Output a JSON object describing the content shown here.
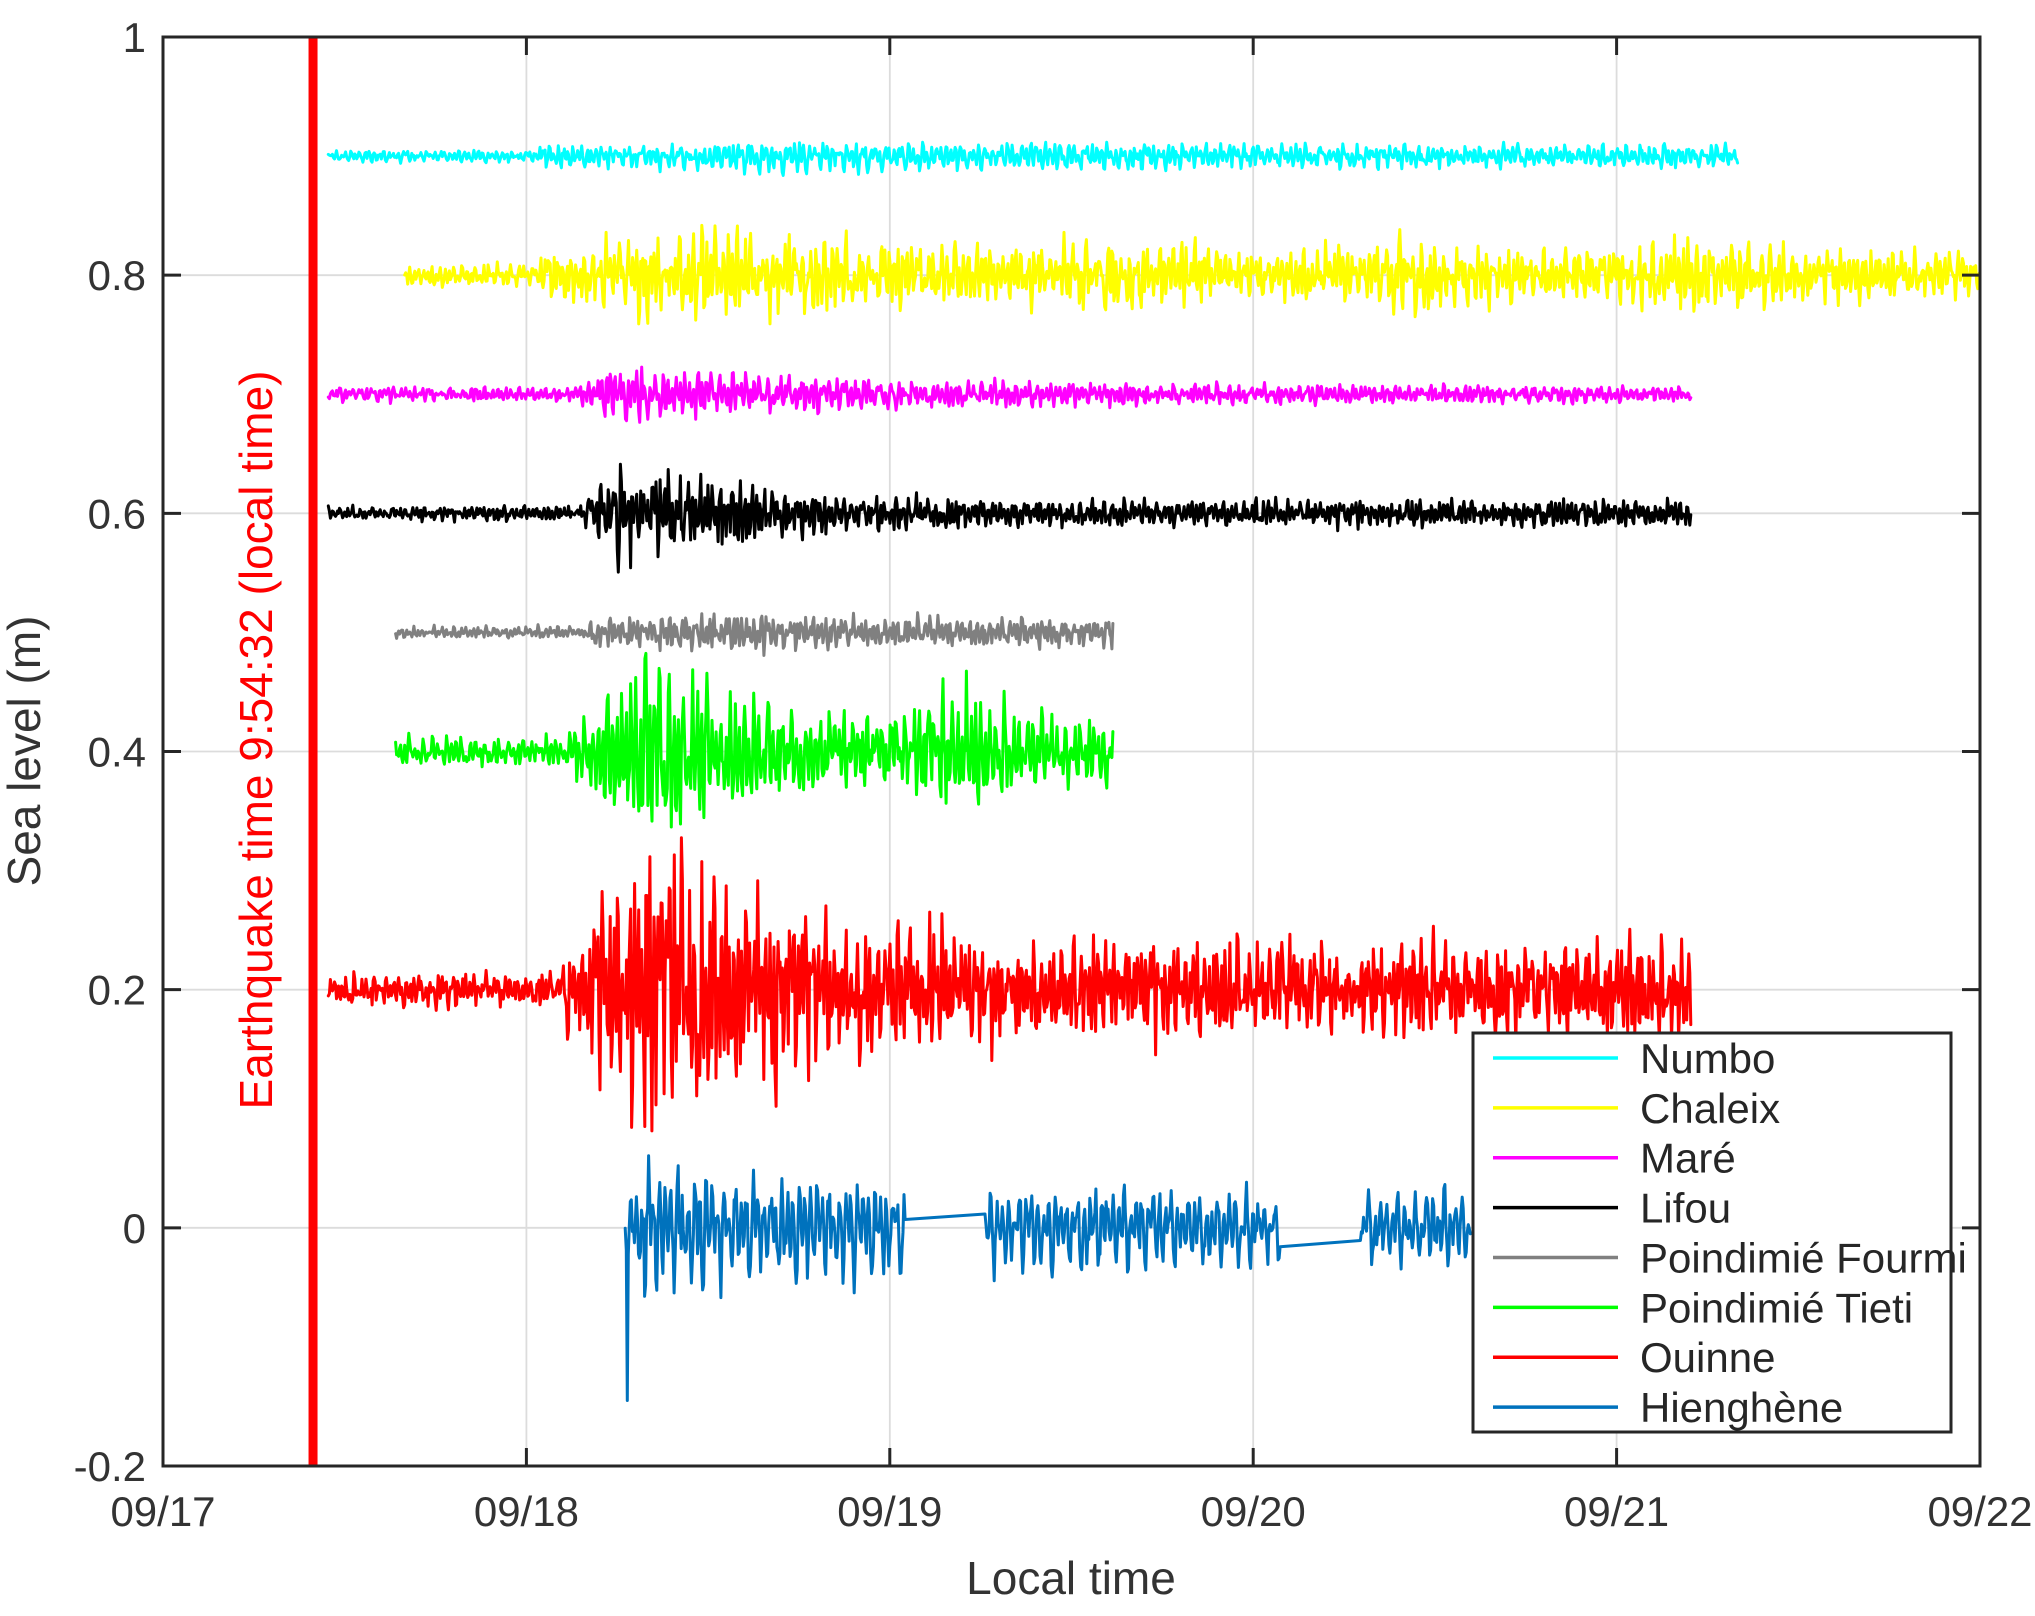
{
  "chart_data": {
    "type": "line",
    "title": "",
    "xlabel": "Local time",
    "ylabel": "Sea level (m)",
    "grid": true,
    "legend_position": "bottom-right",
    "xlim_days": [
      0,
      5
    ],
    "xtick_days": [
      0,
      1,
      2,
      3,
      4,
      5
    ],
    "xticklabels": [
      "09/17",
      "09/18",
      "09/19",
      "09/20",
      "09/21",
      "09/22"
    ],
    "ylim": [
      -0.2,
      1
    ],
    "yticks": [
      -0.2,
      0,
      0.2,
      0.4,
      0.6,
      0.8,
      1
    ],
    "ytick_labels": [
      "-0.2",
      "0",
      "0.2",
      "0.4",
      "0.6",
      "0.8",
      "1"
    ],
    "earthquake": {
      "label": "Earthquake time 9:54:32 (local time)",
      "time_days": 0.41287,
      "color": "#ff0000"
    },
    "series": [
      {
        "name": "Numbo",
        "color": "#00ffff",
        "offset_m": 0.9,
        "segments_days": [
          [
            0.455,
            4.335
          ]
        ],
        "quiet_amp_m": 0.005,
        "burst_start_day": 1.02,
        "rise_days": 0.5,
        "peak_amp_m": 0.013,
        "decay_tau_days": 3.0,
        "late_amp_m": 0.009,
        "periods_days": [
          0.013,
          0.021,
          0.034
        ],
        "noise": 0.5,
        "seed": 11,
        "spikes": [],
        "bumps": []
      },
      {
        "name": "Chaleix",
        "color": "#ffff00",
        "offset_m": 0.8,
        "segments_days": [
          [
            0.665,
            5.0
          ]
        ],
        "quiet_amp_m": 0.009,
        "burst_start_day": 1.04,
        "rise_days": 0.3,
        "peak_amp_m": 0.04,
        "decay_tau_days": 1.2,
        "late_amp_m": 0.02,
        "periods_days": [
          0.012,
          0.02,
          0.033
        ],
        "noise": 0.5,
        "seed": 22,
        "spikes": [],
        "bumps": [
          {
            "t": 2.65,
            "w": 0.15,
            "a": 0.012
          },
          {
            "t": 3.45,
            "w": 0.15,
            "a": 0.012
          },
          {
            "t": 4.25,
            "w": 0.13,
            "a": 0.012
          }
        ]
      },
      {
        "name": "Maré",
        "color": "#ff00ff",
        "offset_m": 0.7,
        "segments_days": [
          [
            0.455,
            4.205
          ]
        ],
        "quiet_amp_m": 0.006,
        "burst_start_day": 1.13,
        "rise_days": 0.12,
        "peak_amp_m": 0.022,
        "decay_tau_days": 0.9,
        "late_amp_m": 0.007,
        "periods_days": [
          0.012,
          0.019,
          0.031
        ],
        "noise": 0.5,
        "seed": 33,
        "spikes": [],
        "bumps": []
      },
      {
        "name": "Lifou",
        "color": "#000000",
        "offset_m": 0.6,
        "segments_days": [
          [
            0.455,
            4.205
          ]
        ],
        "quiet_amp_m": 0.006,
        "burst_start_day": 1.14,
        "rise_days": 0.12,
        "peak_amp_m": 0.042,
        "decay_tau_days": 0.55,
        "late_amp_m": 0.011,
        "periods_days": [
          0.011,
          0.018,
          0.03
        ],
        "noise": 0.5,
        "seed": 44,
        "spikes": [],
        "bumps": []
      },
      {
        "name": "Poindimié Fourmi",
        "color": "#808080",
        "offset_m": 0.5,
        "segments_days": [
          [
            0.64,
            2.615
          ]
        ],
        "quiet_amp_m": 0.005,
        "burst_start_day": 1.17,
        "rise_days": 0.2,
        "peak_amp_m": 0.016,
        "decay_tau_days": 2.0,
        "late_amp_m": 0.012,
        "periods_days": [
          0.011,
          0.018,
          0.029
        ],
        "noise": 0.5,
        "seed": 55,
        "spikes": [],
        "bumps": []
      },
      {
        "name": "Poindimié Tieti",
        "color": "#00ff00",
        "offset_m": 0.4,
        "segments_days": [
          [
            0.64,
            2.615
          ]
        ],
        "quiet_amp_m": 0.012,
        "burst_start_day": 1.13,
        "rise_days": 0.17,
        "peak_amp_m": 0.08,
        "decay_tau_days": 0.45,
        "late_amp_m": 0.03,
        "periods_days": [
          0.013,
          0.021,
          0.034
        ],
        "noise": 0.5,
        "seed": 66,
        "spikes": [],
        "bumps": [
          {
            "t": 2.2,
            "w": 0.1,
            "a": 0.022
          }
        ]
      },
      {
        "name": "Ouinne",
        "color": "#ff0000",
        "offset_m": 0.2,
        "segments_days": [
          [
            0.455,
            4.205
          ]
        ],
        "quiet_amp_m": 0.013,
        "burst_start_day": 1.1,
        "rise_days": 0.2,
        "peak_amp_m": 0.12,
        "decay_tau_days": 0.8,
        "late_amp_m": 0.038,
        "periods_days": [
          0.011,
          0.018,
          0.03
        ],
        "noise": 0.55,
        "seed": 77,
        "spikes": [],
        "bumps": []
      },
      {
        "name": "Hienghène",
        "color": "#0072bd",
        "offset_m": 0.0,
        "segments_days": [
          [
            1.272,
            2.042
          ],
          [
            2.262,
            3.074
          ],
          [
            3.295,
            3.598
          ]
        ],
        "quiet_amp_m": 0.03,
        "burst_start_day": 1.272,
        "rise_days": 0.04,
        "peak_amp_m": 0.06,
        "decay_tau_days": 0.9,
        "late_amp_m": 0.024,
        "periods_days": [
          0.016,
          0.026,
          0.042
        ],
        "noise": 0.35,
        "seed": 88,
        "spikes": [
          {
            "t": 1.278,
            "amp": -0.145
          }
        ],
        "bumps": []
      }
    ]
  },
  "style_colors": {
    "axis": "#262626",
    "tick_label": "#333333",
    "grid": "#dcdcdc",
    "legend_border": "#262626",
    "background": "#ffffff"
  }
}
